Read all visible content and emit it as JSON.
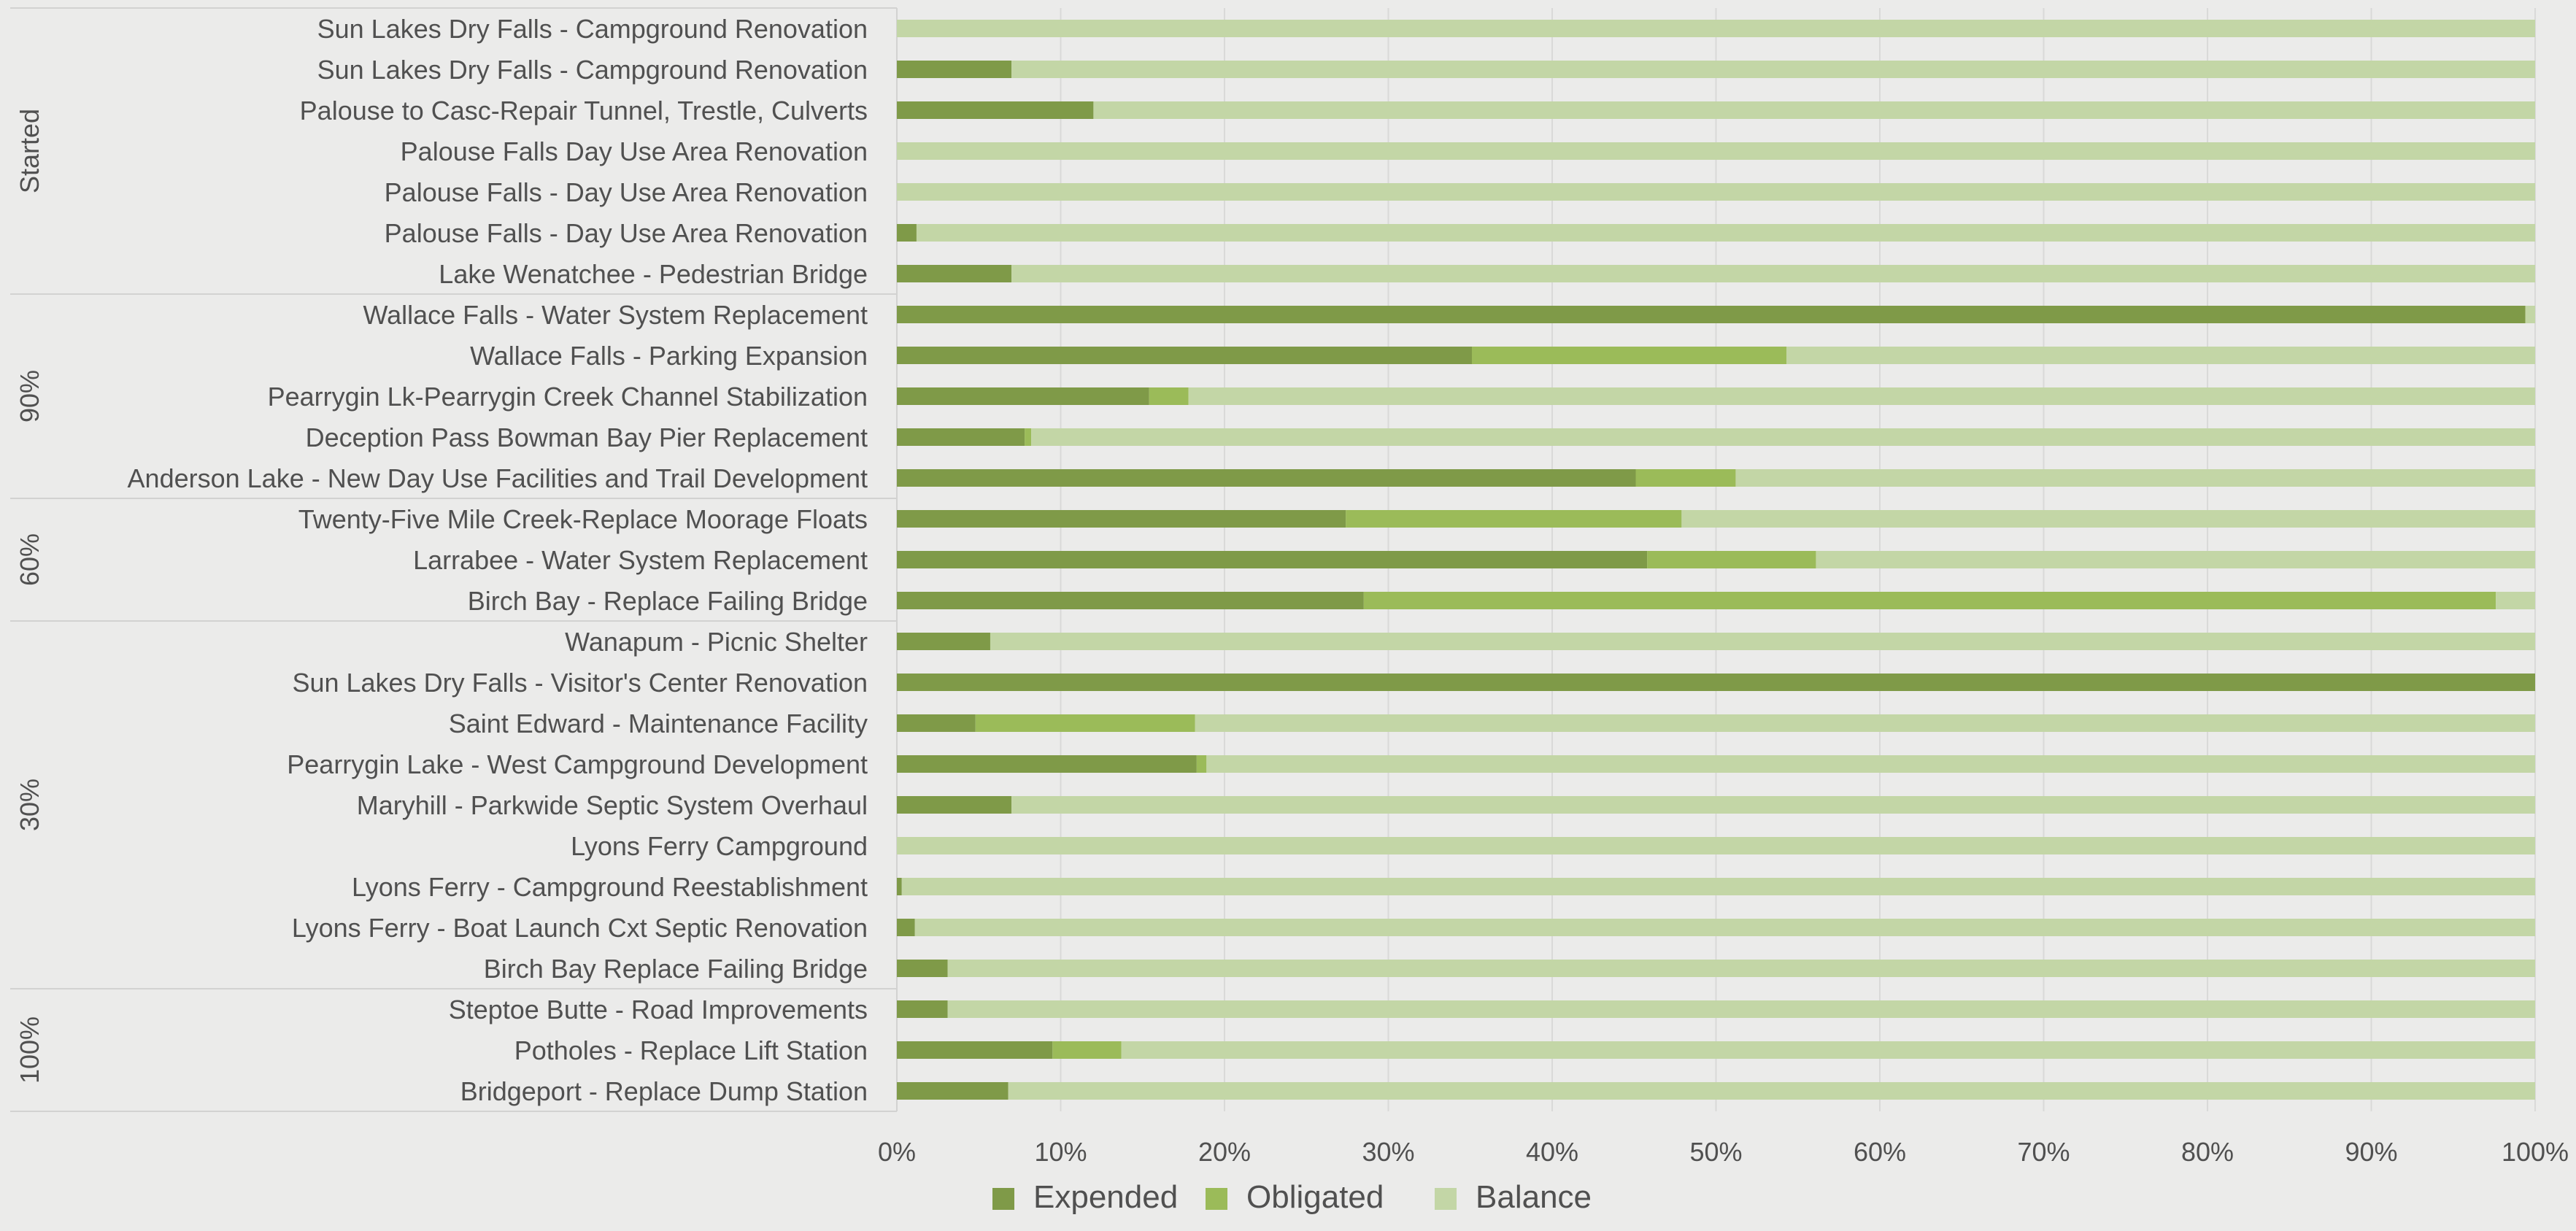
{
  "chart_data": {
    "type": "bar",
    "orientation": "horizontal",
    "stacked": "percent",
    "categories": [
      "Sun Lakes Dry Falls - Campground Renovation",
      "Sun Lakes Dry Falls - Campground Renovation",
      "Palouse to Casc-Repair Tunnel, Trestle, Culverts",
      "Palouse Falls Day Use Area Renovation",
      "Palouse Falls - Day Use Area Renovation",
      "Palouse Falls - Day Use Area Renovation",
      "Lake Wenatchee - Pedestrian Bridge",
      "Wallace Falls - Water System Replacement",
      "Wallace Falls - Parking Expansion",
      "Pearrygin Lk-Pearrygin Creek Channel Stabilization",
      "Deception Pass Bowman Bay Pier Replacement",
      "Anderson Lake - New Day Use Facilities and Trail Development",
      "Twenty-Five Mile Creek-Replace Moorage Floats",
      "Larrabee - Water System Replacement",
      "Birch Bay  - Replace Failing Bridge",
      "Wanapum - Picnic Shelter",
      "Sun Lakes Dry Falls - Visitor's Center Renovation",
      "Saint Edward - Maintenance Facility ",
      "Pearrygin Lake - West Campground Development",
      "Maryhill - Parkwide Septic System Overhaul",
      "Lyons Ferry Campground ",
      "Lyons Ferry - Campground Reestablishment",
      "Lyons Ferry - Boat Launch Cxt Septic Renovation",
      "Birch Bay Replace Failing Bridge",
      "Steptoe Butte - Road Improvements",
      "Potholes - Replace Lift Station",
      "Bridgeport - Replace Dump Station"
    ],
    "groups": [
      {
        "label": "Started",
        "count": 7
      },
      {
        "label": "90%",
        "count": 5
      },
      {
        "label": "60%",
        "count": 3
      },
      {
        "label": "30%",
        "count": 9
      },
      {
        "label": "100%",
        "count": 3
      }
    ],
    "series": [
      {
        "name": "Expended",
        "color": "#7f9a48",
        "values": [
          0,
          7,
          12,
          0,
          0,
          1.2,
          7,
          99.4,
          35.1,
          15.4,
          7.8,
          45.1,
          27.4,
          45.8,
          28.5,
          5.7,
          100,
          4.8,
          18.3,
          7,
          0,
          0.3,
          1.1,
          3.1,
          3.1,
          9.5,
          6.8
        ]
      },
      {
        "name": "Obligated",
        "color": "#9bbb59",
        "values": [
          0,
          0,
          0,
          0,
          0,
          0,
          0,
          0,
          19.2,
          2.4,
          0.4,
          6.1,
          20.5,
          10.3,
          69.1,
          0,
          0,
          13.4,
          0.6,
          0,
          0,
          0,
          0,
          0,
          0,
          4.2,
          0
        ]
      },
      {
        "name": "Balance",
        "color": "#c3d6a6",
        "values": [
          100,
          93,
          88,
          100,
          100,
          98.8,
          93,
          0.6,
          45.7,
          82.2,
          91.8,
          48.8,
          52.1,
          43.9,
          2.4,
          94.3,
          0,
          81.8,
          81.1,
          93,
          100,
          99.7,
          98.9,
          96.9,
          96.9,
          86.3,
          93.2
        ]
      }
    ],
    "xlim": [
      0,
      100
    ],
    "x_ticks": [
      "0%",
      "10%",
      "20%",
      "30%",
      "40%",
      "50%",
      "60%",
      "70%",
      "80%",
      "90%",
      "100%"
    ],
    "grid": true,
    "legend": "bottom",
    "title": "",
    "xlabel": "",
    "ylabel": ""
  }
}
